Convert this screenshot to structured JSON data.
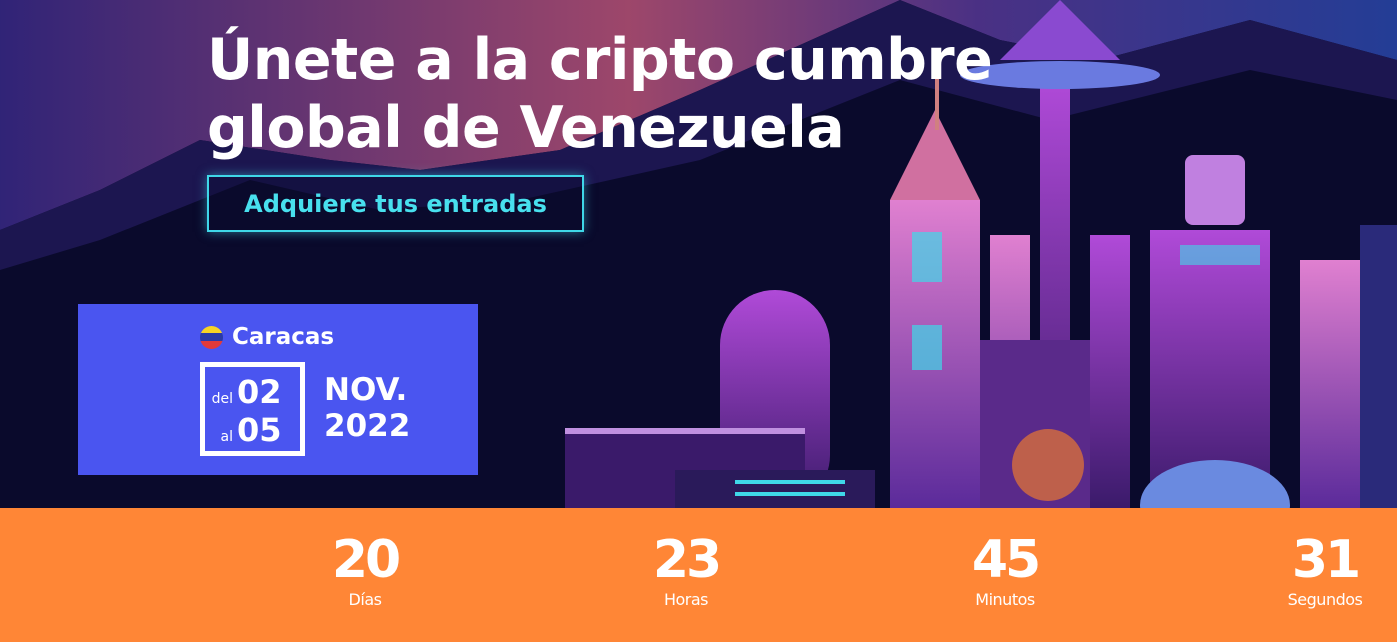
{
  "hero": {
    "title_line1": "Únete a la cripto cumbre",
    "title_line2": "global de Venezuela",
    "cta_label": "Adquiere tus entradas"
  },
  "event": {
    "city": "Caracas",
    "from_prefix": "del",
    "from_day": "02",
    "to_prefix": "al",
    "to_day": "05",
    "month": "NOV.",
    "year": "2022",
    "flag_icon": "venezuela-flag-icon"
  },
  "countdown": [
    {
      "value": "20",
      "label": "Días"
    },
    {
      "value": "23",
      "label": "Horas"
    },
    {
      "value": "45",
      "label": "Minutos"
    },
    {
      "value": "31",
      "label": "Segundos"
    }
  ],
  "colors": {
    "accent_cyan": "#3fd8e8",
    "event_blue": "#4a55f0",
    "countdown_orange": "#ff8636",
    "background": "#0a0a2c"
  }
}
